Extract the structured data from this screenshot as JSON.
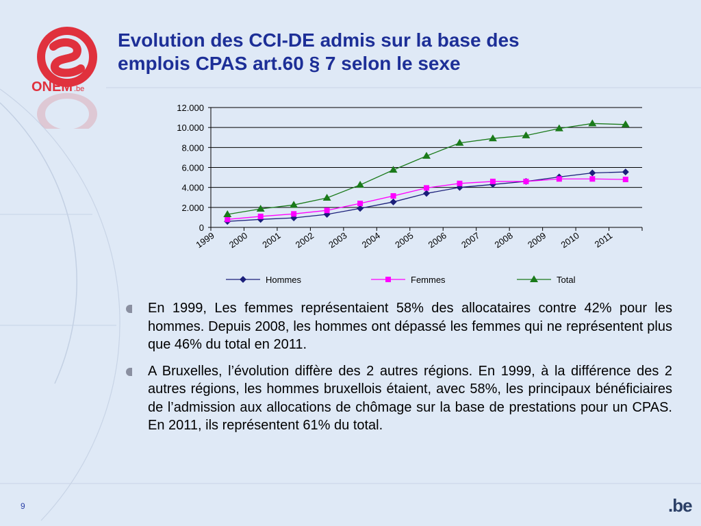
{
  "header": {
    "title_line1": "Evolution des CCI-DE admis sur la base des",
    "title_line2": "emplois CPAS art.60 § 7 selon le sexe"
  },
  "logo": {
    "icon": "onem-logo-icon",
    "text": "ONEM",
    "suffix": ".be",
    "color": "#e0313d"
  },
  "chart_data": {
    "type": "line",
    "categories": [
      "1999",
      "2000",
      "2001",
      "2002",
      "2003",
      "2004",
      "2005",
      "2006",
      "2007",
      "2008",
      "2009",
      "2010",
      "2011"
    ],
    "y_ticks": [
      "0",
      "2.000",
      "4.000",
      "6.000",
      "8.000",
      "10.000",
      "12.000"
    ],
    "ylim": [
      0,
      12000
    ],
    "grid": true,
    "legend_position": "bottom",
    "series": [
      {
        "name": "Hommes",
        "color": "#1b1f7a",
        "marker": "diamond",
        "values": [
          600,
          800,
          950,
          1300,
          1900,
          2550,
          3400,
          4000,
          4300,
          4600,
          5050,
          5450,
          5550
        ]
      },
      {
        "name": "Femmes",
        "color": "#ff00ff",
        "marker": "square",
        "values": [
          800,
          1100,
          1350,
          1700,
          2400,
          3150,
          3950,
          4400,
          4600,
          4600,
          4850,
          4850,
          4800
        ]
      },
      {
        "name": "Total",
        "color": "#1a7a1a",
        "marker": "triangle",
        "values": [
          1300,
          1850,
          2250,
          2950,
          4250,
          5750,
          7150,
          8450,
          8900,
          9200,
          9900,
          10400,
          10300
        ]
      }
    ]
  },
  "bullets": [
    "En 1999, Les femmes représentaient 58% des allocataires contre 42% pour les hommes. Depuis 2008, les hommes ont dépassé les femmes qui ne représentent plus que 46% du total en 2011.",
    "A Bruxelles, l’évolution diffère des 2 autres régions.  En 1999, à la différence des 2 autres régions, les hommes bruxellois étaient, avec 58%, les principaux bénéficiaires de l’admission aux allocations de chômage sur la base de prestations pour un CPAS. En 2011, ils représentent 61% du total."
  ],
  "footer": {
    "page_number": "9",
    "brand": ".be"
  }
}
